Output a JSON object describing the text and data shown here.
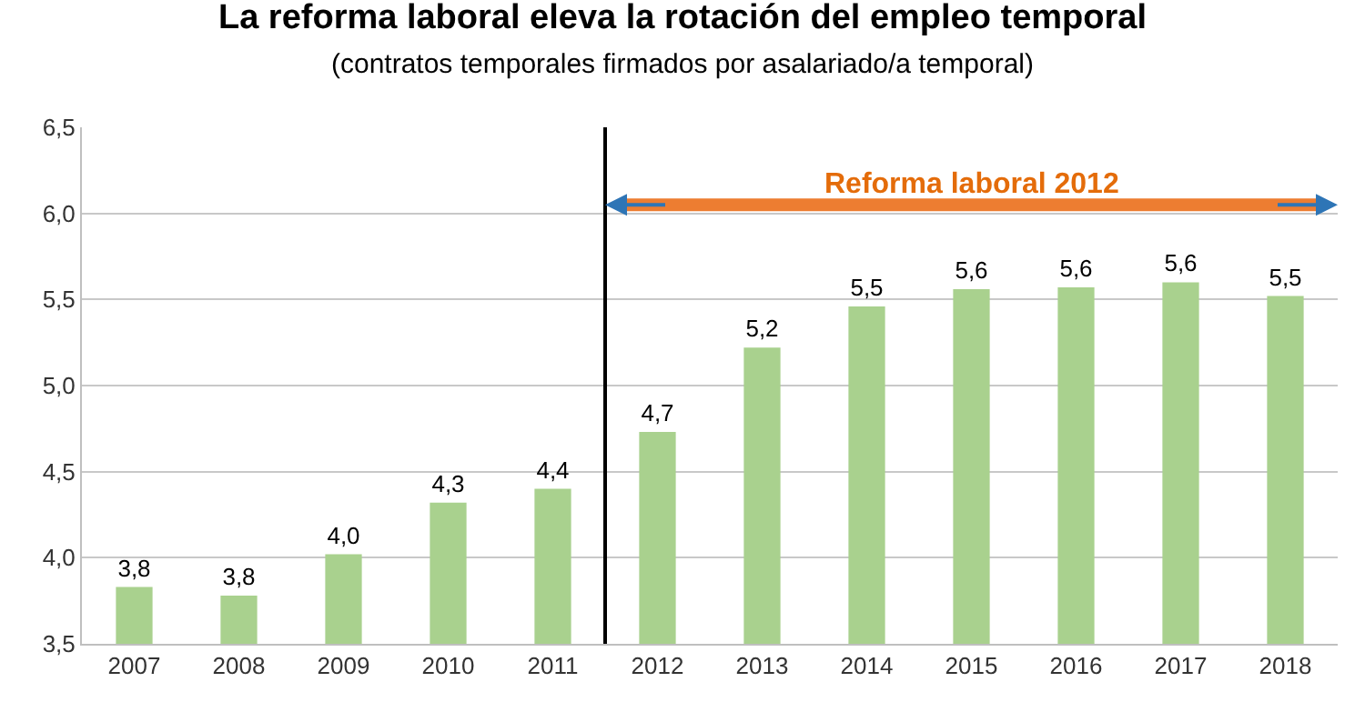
{
  "chart_data": {
    "type": "bar",
    "title": "La reforma laboral eleva la rotación del empleo temporal",
    "subtitle": "(contratos temporales firmados por asalariado/a temporal)",
    "categories": [
      "2007",
      "2008",
      "2009",
      "2010",
      "2011",
      "2012",
      "2013",
      "2014",
      "2015",
      "2016",
      "2017",
      "2018"
    ],
    "values": [
      3.83,
      3.78,
      4.02,
      4.32,
      4.4,
      4.73,
      5.22,
      5.46,
      5.56,
      5.57,
      5.6,
      5.52
    ],
    "value_labels": [
      "3,8",
      "3,8",
      "4,0",
      "4,3",
      "4,4",
      "4,7",
      "5,2",
      "5,5",
      "5,6",
      "5,6",
      "5,6",
      "5,5"
    ],
    "color": "#a9d18e",
    "ylim": [
      3.5,
      6.5
    ],
    "yticks": [
      {
        "value": 3.5,
        "label": "3,5"
      },
      {
        "value": 4.0,
        "label": "4,0"
      },
      {
        "value": 4.5,
        "label": "4,5"
      },
      {
        "value": 5.0,
        "label": "5,0"
      },
      {
        "value": 5.5,
        "label": "5,5"
      },
      {
        "value": 6.0,
        "label": "6,0"
      },
      {
        "value": 6.5,
        "label": "6,5"
      }
    ],
    "grid": "y",
    "ref_lines": [
      {
        "axis": "x",
        "value": "2012",
        "label": null,
        "color": "#000000"
      }
    ],
    "annotations": [
      "Reforma laboral 2012"
    ]
  }
}
